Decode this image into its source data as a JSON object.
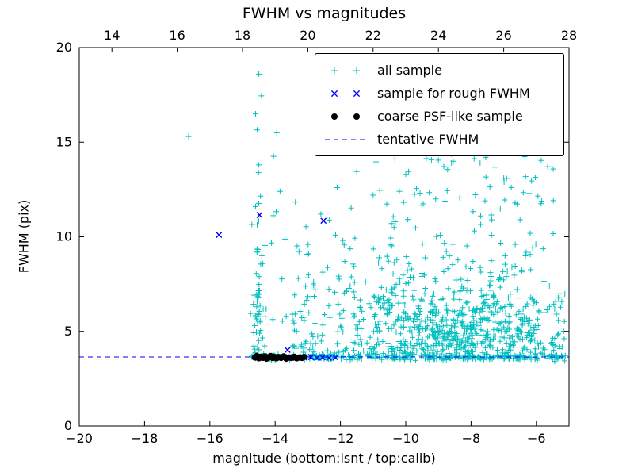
{
  "chart_data": {
    "type": "scatter",
    "title": "FWHM vs magnitudes",
    "xlabel": "magnitude (bottom:isnt / top:calib)",
    "ylabel": "FWHM (pix)",
    "xlim": [
      -20,
      -5
    ],
    "ylim": [
      0,
      20
    ],
    "xticks": [
      -20,
      -18,
      -16,
      -14,
      -12,
      -10,
      -8,
      -6
    ],
    "yticks": [
      0,
      5,
      10,
      15,
      20
    ],
    "top_axis": {
      "lim": [
        13,
        28
      ],
      "ticks": [
        14,
        16,
        18,
        20,
        22,
        24,
        26,
        28
      ]
    },
    "grid": false,
    "legend_position": "upper right",
    "seed": 9,
    "tentative_fwhm_y": 3.65,
    "legend": [
      {
        "label": "all sample",
        "marker": "plus",
        "color": "#00bfbf"
      },
      {
        "label": "sample for rough FWHM",
        "marker": "x",
        "color": "#0000ff"
      },
      {
        "label": "coarse PSF-like sample",
        "marker": "dot",
        "color": "#000000"
      },
      {
        "label": "tentative FWHM",
        "marker": "dashed-line",
        "color": "#0000ff"
      }
    ],
    "series": [
      {
        "name": "all sample",
        "marker": "plus",
        "color": "#00bfbf",
        "zorder": 1,
        "feature_points": [
          [
            -16.65,
            15.3
          ],
          [
            -14.5,
            18.6
          ],
          [
            -14.42,
            17.45
          ],
          [
            -14.6,
            16.5
          ],
          [
            -14.55,
            15.65
          ],
          [
            -13.95,
            15.5
          ],
          [
            -14.05,
            14.25
          ],
          [
            -14.5,
            13.8
          ],
          [
            -14.45,
            12.15
          ],
          [
            -14.6,
            11.6
          ],
          [
            -13.85,
            12.4
          ],
          [
            -9.35,
            14.9
          ],
          [
            -10.45,
            14.55
          ],
          [
            -7.55,
            14.2
          ],
          [
            -8.6,
            13.9
          ],
          [
            -11.5,
            13.45
          ],
          [
            -10.0,
            13.3
          ],
          [
            -12.1,
            12.6
          ],
          [
            -6.15,
            12.95
          ],
          [
            -5.6,
            7.4
          ],
          [
            -5.3,
            4.2
          ],
          [
            -5.2,
            3.65
          ],
          [
            -9.0,
            14.05
          ],
          [
            -7.0,
            13.1
          ],
          [
            -6.5,
            10.9
          ],
          [
            -12.6,
            11.2
          ],
          [
            -11.0,
            12.2
          ]
        ],
        "clusters": [
          {
            "count": 620,
            "x": {
              "dist": "gauss",
              "mean": -8.4,
              "sd": 1.5,
              "min": -12.9,
              "max": -5.05
            },
            "y": {
              "dist": "halfgauss",
              "base": 3.5,
              "scale": 2.4,
              "max": 14.6
            }
          },
          {
            "count": 230,
            "x": {
              "dist": "uniform",
              "min": -14.75,
              "max": -5.1
            },
            "y": {
              "dist": "gauss",
              "mean": 3.65,
              "sd": 0.09,
              "min": 3.35,
              "max": 3.95
            }
          },
          {
            "count": 55,
            "x": {
              "dist": "gauss",
              "mean": -14.52,
              "sd": 0.09,
              "min": -14.8,
              "max": -14.25
            },
            "y": {
              "dist": "halfgauss",
              "base": 3.7,
              "scale": 3.5,
              "max": 13.6
            }
          },
          {
            "count": 150,
            "x": {
              "dist": "uniform",
              "min": -13.5,
              "max": -9.5
            },
            "y": {
              "dist": "halfgauss",
              "base": 3.7,
              "scale": 3.0,
              "max": 13.8
            }
          },
          {
            "count": 90,
            "x": {
              "dist": "uniform",
              "min": -11.0,
              "max": -5.4
            },
            "y": {
              "dist": "uniform",
              "min": 8.0,
              "max": 14.6
            }
          },
          {
            "count": 50,
            "x": {
              "dist": "uniform",
              "min": -7.0,
              "max": -5.1
            },
            "y": {
              "dist": "uniform",
              "min": 3.4,
              "max": 7.0
            }
          },
          {
            "count": 25,
            "x": {
              "dist": "uniform",
              "min": -14.2,
              "max": -12.8
            },
            "y": {
              "dist": "uniform",
              "min": 4.0,
              "max": 12.0
            }
          }
        ]
      },
      {
        "name": "tentative FWHM",
        "marker": "dashed-line",
        "color": "#0000ff",
        "zorder": 2,
        "y": 3.65
      },
      {
        "name": "sample for rough FWHM",
        "marker": "x",
        "color": "#0000ff",
        "zorder": 3,
        "points": [
          [
            -15.72,
            10.1
          ],
          [
            -14.48,
            11.15
          ],
          [
            -12.52,
            10.85
          ],
          [
            -13.62,
            4.02
          ],
          [
            -14.15,
            3.66
          ],
          [
            -13.9,
            3.6
          ],
          [
            -13.72,
            3.64
          ],
          [
            -13.5,
            3.6
          ],
          [
            -13.3,
            3.66
          ],
          [
            -13.1,
            3.6
          ],
          [
            -12.9,
            3.64
          ],
          [
            -12.72,
            3.6
          ],
          [
            -12.55,
            3.63
          ],
          [
            -12.35,
            3.6
          ],
          [
            -12.15,
            3.62
          ]
        ]
      },
      {
        "name": "coarse PSF-like sample",
        "marker": "dot",
        "color": "#000000",
        "zorder": 4,
        "points": [
          [
            -14.62,
            3.62
          ],
          [
            -14.56,
            3.7
          ],
          [
            -14.5,
            3.58
          ],
          [
            -14.44,
            3.66
          ],
          [
            -14.38,
            3.6
          ],
          [
            -14.32,
            3.68
          ],
          [
            -14.26,
            3.56
          ],
          [
            -14.2,
            3.63
          ],
          [
            -14.14,
            3.7
          ],
          [
            -14.08,
            3.6
          ],
          [
            -14.02,
            3.65
          ],
          [
            -13.96,
            3.58
          ],
          [
            -13.9,
            3.64
          ],
          [
            -13.82,
            3.6
          ],
          [
            -13.74,
            3.68
          ],
          [
            -13.66,
            3.56
          ],
          [
            -13.58,
            3.62
          ],
          [
            -13.5,
            3.6
          ],
          [
            -13.42,
            3.66
          ],
          [
            -13.34,
            3.58
          ],
          [
            -13.26,
            3.62
          ],
          [
            -13.18,
            3.6
          ],
          [
            -13.12,
            3.65
          ]
        ]
      }
    ]
  }
}
